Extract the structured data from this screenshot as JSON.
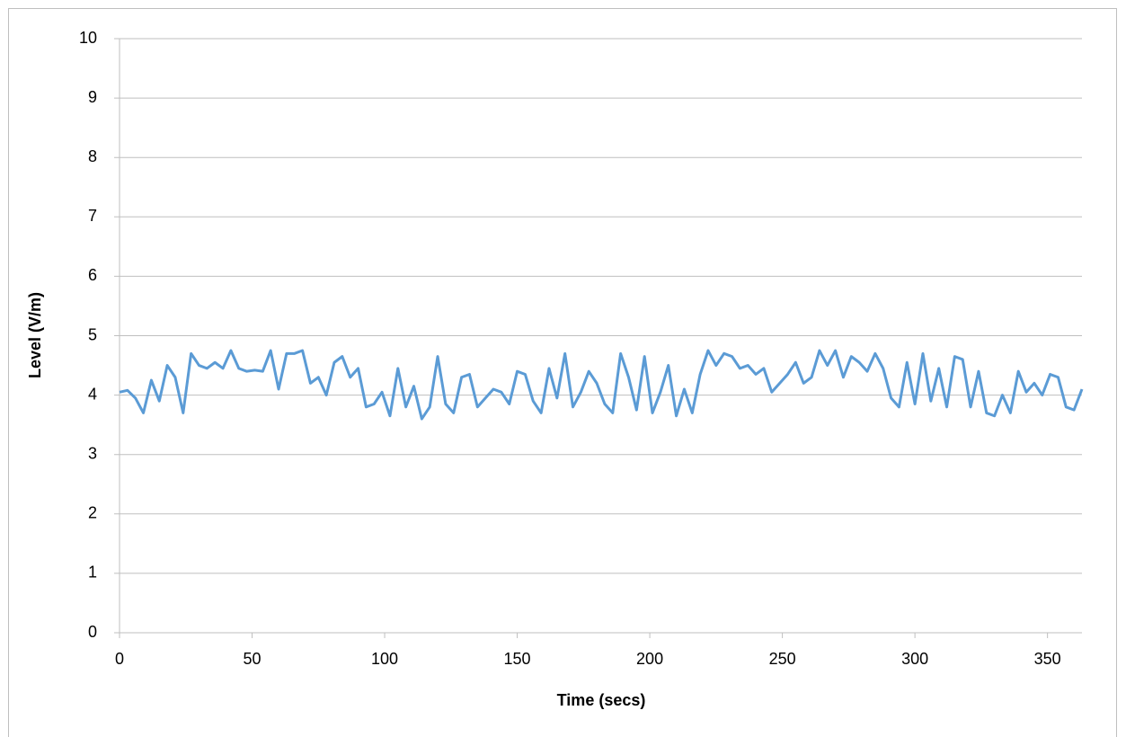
{
  "chart_data": {
    "type": "line",
    "x_label": "Time (secs)",
    "y_label": "Level (V/m)",
    "x": [
      0,
      3,
      6,
      9,
      12,
      15,
      18,
      21,
      24,
      27,
      30,
      33,
      36,
      39,
      42,
      45,
      48,
      51,
      54,
      57,
      60,
      63,
      66,
      69,
      72,
      75,
      78,
      81,
      84,
      87,
      90,
      93,
      96,
      99,
      102,
      105,
      108,
      111,
      114,
      117,
      120,
      123,
      126,
      129,
      132,
      135,
      138,
      141,
      144,
      147,
      150,
      153,
      156,
      159,
      162,
      165,
      168,
      171,
      174,
      177,
      180,
      183,
      186,
      189,
      192,
      195,
      198,
      201,
      204,
      207,
      210,
      213,
      216,
      219,
      222,
      225,
      228,
      231,
      234,
      237,
      240,
      243,
      246,
      249,
      252,
      255,
      258,
      261,
      264,
      267,
      270,
      273,
      276,
      279,
      282,
      285,
      288,
      291,
      294,
      297,
      300,
      303,
      306,
      309,
      312,
      315,
      318,
      321,
      324,
      327,
      330,
      333,
      336,
      339,
      342,
      345,
      348,
      351,
      354,
      357,
      360,
      363
    ],
    "series": [
      {
        "name": "Level",
        "color": "#5b9bd5",
        "values": [
          4.05,
          4.08,
          3.95,
          3.7,
          4.25,
          3.9,
          4.5,
          4.3,
          3.7,
          4.7,
          4.5,
          4.45,
          4.55,
          4.45,
          4.75,
          4.45,
          4.4,
          4.42,
          4.4,
          4.75,
          4.1,
          4.7,
          4.7,
          4.75,
          4.2,
          4.3,
          4.0,
          4.55,
          4.65,
          4.3,
          4.45,
          3.8,
          3.85,
          4.05,
          3.65,
          4.45,
          3.8,
          4.15,
          3.6,
          3.8,
          4.65,
          3.85,
          3.7,
          4.3,
          4.35,
          3.8,
          3.95,
          4.1,
          4.05,
          3.85,
          4.4,
          4.35,
          3.9,
          3.7,
          4.45,
          3.95,
          4.7,
          3.8,
          4.05,
          4.4,
          4.2,
          3.85,
          3.7,
          4.7,
          4.3,
          3.75,
          4.65,
          3.7,
          4.05,
          4.5,
          3.65,
          4.1,
          3.7,
          4.35,
          4.75,
          4.5,
          4.7,
          4.65,
          4.45,
          4.5,
          4.35,
          4.45,
          4.05,
          4.2,
          4.35,
          4.55,
          4.2,
          4.3,
          4.75,
          4.5,
          4.75,
          4.3,
          4.65,
          4.55,
          4.4,
          4.7,
          4.45,
          3.95,
          3.8,
          4.55,
          3.85,
          4.7,
          3.9,
          4.45,
          3.8,
          4.65,
          4.6,
          3.8,
          4.4,
          3.7,
          3.65,
          4.0,
          3.7,
          4.4,
          4.05,
          4.2,
          4.0,
          4.35,
          4.3,
          3.8,
          3.75,
          4.1
        ]
      }
    ],
    "xlim": [
      0,
      363
    ],
    "ylim": [
      0,
      10
    ],
    "xticks": [
      0,
      50,
      100,
      150,
      200,
      250,
      300,
      350
    ],
    "yticks": [
      0,
      1,
      2,
      3,
      4,
      5,
      6,
      7,
      8,
      9,
      10
    ],
    "grid": true
  }
}
